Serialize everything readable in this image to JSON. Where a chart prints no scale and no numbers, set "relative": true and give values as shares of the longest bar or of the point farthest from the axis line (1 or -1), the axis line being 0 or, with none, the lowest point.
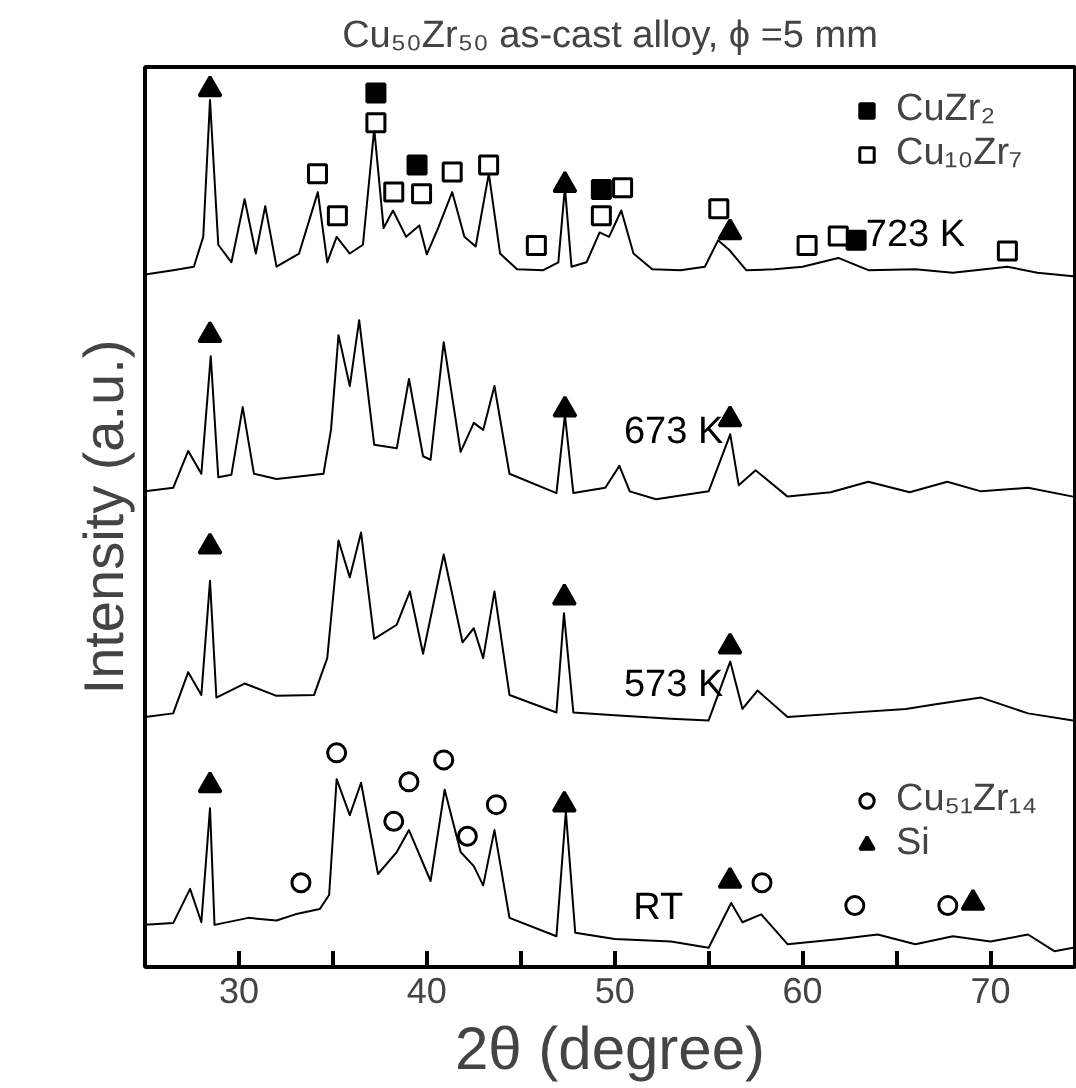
{
  "chart_data": {
    "type": "line",
    "title": "Cu₅₀Zr₅₀ as-cast alloy, ϕ =5 mm",
    "xlabel": "2θ (degree)",
    "ylabel": "Intensity (a.u.)",
    "relative": true,
    "xlim": [
      25,
      74.5
    ],
    "xticks": [
      30,
      {
        "value": 35,
        "label": null
      },
      40,
      {
        "value": 45,
        "label": null
      },
      50,
      {
        "value": 55,
        "label": null
      },
      60,
      {
        "value": 65,
        "label": null
      },
      70
    ],
    "grid": false,
    "legend": "right",
    "tick_labels": "x",
    "line_style": "solid",
    "marker": "none",
    "series": [
      {
        "name": "723 K",
        "color": "#000000",
        "x": [
          25.0,
          26.5,
          27.6,
          28.1,
          28.46,
          28.9,
          29.6,
          30.3,
          30.9,
          31.4,
          32.0,
          33.2,
          34.2,
          34.7,
          35.2,
          35.9,
          36.6,
          37.2,
          37.7,
          38.2,
          38.9,
          39.6,
          40.0,
          40.6,
          41.35,
          42.0,
          42.6,
          43.3,
          43.9,
          44.8,
          46.2,
          47.0,
          47.35,
          47.7,
          48.5,
          49.2,
          49.7,
          50.35,
          51.0,
          52.0,
          53.5,
          54.8,
          55.5,
          56.1,
          57.0,
          58.5,
          60.0,
          61.9,
          63.5,
          66.0,
          68.0,
          70.9,
          72.5,
          74.4
        ],
        "values": [
          0.789,
          0.794,
          0.798,
          0.832,
          0.988,
          0.823,
          0.803,
          0.875,
          0.813,
          0.867,
          0.798,
          0.813,
          0.883,
          0.803,
          0.832,
          0.813,
          0.823,
          0.955,
          0.842,
          0.862,
          0.832,
          0.845,
          0.812,
          0.842,
          0.883,
          0.832,
          0.821,
          0.904,
          0.813,
          0.795,
          0.794,
          0.803,
          0.888,
          0.798,
          0.803,
          0.837,
          0.832,
          0.862,
          0.813,
          0.795,
          0.794,
          0.798,
          0.828,
          0.817,
          0.794,
          0.795,
          0.798,
          0.808,
          0.794,
          0.795,
          0.791,
          0.798,
          0.791,
          0.787
        ]
      },
      {
        "name": "673 K",
        "color": "#000000",
        "x": [
          25.0,
          26.5,
          27.3,
          28.0,
          28.5,
          28.9,
          29.6,
          30.2,
          30.8,
          32.0,
          33.2,
          34.5,
          34.9,
          35.3,
          35.9,
          36.4,
          37.2,
          38.4,
          39.05,
          39.8,
          40.2,
          40.9,
          41.8,
          42.5,
          43.0,
          43.6,
          44.4,
          46.9,
          47.35,
          47.8,
          49.5,
          50.25,
          50.8,
          52.2,
          55.0,
          56.15,
          56.6,
          57.5,
          59.2,
          61.5,
          63.5,
          65.7,
          67.7,
          69.5,
          72.0,
          74.4
        ],
        "values": [
          0.542,
          0.546,
          0.588,
          0.562,
          0.696,
          0.558,
          0.561,
          0.638,
          0.562,
          0.556,
          0.559,
          0.562,
          0.612,
          0.72,
          0.662,
          0.737,
          0.595,
          0.591,
          0.67,
          0.582,
          0.578,
          0.712,
          0.587,
          0.62,
          0.612,
          0.662,
          0.562,
          0.54,
          0.629,
          0.54,
          0.546,
          0.571,
          0.542,
          0.533,
          0.542,
          0.607,
          0.549,
          0.566,
          0.536,
          0.541,
          0.553,
          0.541,
          0.553,
          0.542,
          0.546,
          0.536
        ]
      },
      {
        "name": "573 K",
        "color": "#000000",
        "x": [
          25.0,
          26.5,
          27.3,
          28.0,
          28.46,
          28.8,
          30.3,
          32.0,
          34.0,
          34.7,
          35.3,
          35.9,
          36.5,
          37.2,
          38.4,
          39.1,
          39.8,
          40.9,
          41.9,
          42.5,
          43.0,
          43.6,
          44.4,
          46.9,
          47.3,
          47.8,
          50.0,
          53.0,
          55.0,
          56.15,
          56.8,
          57.6,
          59.2,
          62.0,
          65.5,
          67.0,
          69.5,
          72.0,
          74.4
        ],
        "values": [
          0.285,
          0.289,
          0.336,
          0.31,
          0.44,
          0.307,
          0.323,
          0.309,
          0.31,
          0.352,
          0.486,
          0.444,
          0.495,
          0.374,
          0.39,
          0.428,
          0.357,
          0.47,
          0.37,
          0.386,
          0.352,
          0.428,
          0.31,
          0.29,
          0.403,
          0.29,
          0.287,
          0.283,
          0.281,
          0.348,
          0.294,
          0.315,
          0.285,
          0.289,
          0.294,
          0.299,
          0.307,
          0.289,
          0.281
        ]
      },
      {
        "name": "RT",
        "color": "#000000",
        "x": [
          25.0,
          26.5,
          27.4,
          28.0,
          28.46,
          28.7,
          30.5,
          32.0,
          33.0,
          34.3,
          34.8,
          35.2,
          35.9,
          36.5,
          37.4,
          38.4,
          39.05,
          40.2,
          40.95,
          41.8,
          42.5,
          43.0,
          43.6,
          44.4,
          46.9,
          47.4,
          47.9,
          50.0,
          53.0,
          55.0,
          56.2,
          56.8,
          57.8,
          59.2,
          62.0,
          64.0,
          66.0,
          68.0,
          70.0,
          72.0,
          73.4,
          74.4
        ],
        "values": [
          0.048,
          0.05,
          0.089,
          0.051,
          0.181,
          0.048,
          0.056,
          0.053,
          0.06,
          0.066,
          0.082,
          0.214,
          0.173,
          0.21,
          0.106,
          0.131,
          0.156,
          0.098,
          0.202,
          0.131,
          0.115,
          0.093,
          0.156,
          0.056,
          0.035,
          0.177,
          0.039,
          0.032,
          0.029,
          0.022,
          0.073,
          0.051,
          0.06,
          0.026,
          0.032,
          0.037,
          0.026,
          0.035,
          0.029,
          0.037,
          0.018,
          0.022
        ]
      },
      {
        "name": "CuZr₂",
        "type": "scatter",
        "marker": "square",
        "color": "#000000",
        "x": [
          37.29,
          39.48,
          49.29,
          62.85
        ],
        "values": [
          0.996,
          0.914,
          0.886,
          0.828
        ]
      },
      {
        "name": "Cu₁₀Zr₇",
        "type": "scatter",
        "marker": "square",
        "color": "#ffffff",
        "x": [
          34.18,
          35.24,
          37.29,
          38.24,
          39.72,
          41.35,
          43.29,
          45.83,
          49.29,
          50.42,
          55.54,
          60.24,
          61.9,
          70.9
        ],
        "values": [
          0.904,
          0.856,
          0.962,
          0.883,
          0.881,
          0.906,
          0.914,
          0.822,
          0.856,
          0.888,
          0.864,
          0.822,
          0.833,
          0.816
        ]
      },
      {
        "name": "Cu₅₁Zr₁₄",
        "type": "scatter",
        "marker": "circle",
        "color": "#ffffff",
        "x": [
          33.3,
          35.2,
          38.24,
          39.05,
          40.9,
          42.16,
          43.7,
          57.84,
          62.78,
          67.73
        ],
        "values": [
          0.096,
          0.244,
          0.166,
          0.211,
          0.236,
          0.149,
          0.185,
          0.096,
          0.07,
          0.07
        ]
      },
      {
        "name": "Si",
        "type": "scatter",
        "marker": "triangle",
        "color": "#000000",
        "x": [
          28.46,
          47.35,
          56.14,
          28.46,
          47.35,
          56.14,
          28.46,
          47.32,
          56.14,
          28.46,
          47.32,
          56.14,
          69.07
        ],
        "values": [
          1.0,
          0.891,
          0.837,
          0.72,
          0.635,
          0.624,
          0.479,
          0.421,
          0.365,
          0.207,
          0.185,
          0.098,
          0.073
        ]
      }
    ]
  }
}
